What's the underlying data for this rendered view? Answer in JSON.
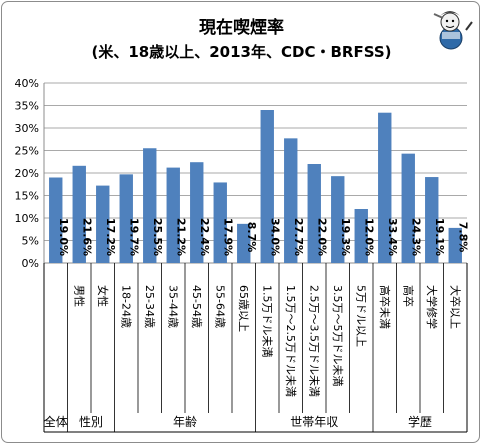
{
  "chart_data": {
    "type": "bar",
    "title": "現在喫煙率",
    "subtitle": "(米、18歳以上、2013年、CDC・BRFSS)",
    "ylim": [
      0,
      40
    ],
    "y_ticks": [
      "0%",
      "5%",
      "10%",
      "15%",
      "20%",
      "25%",
      "30%",
      "35%",
      "40%"
    ],
    "grid": true,
    "bar_color": "#4f81bd",
    "groups": [
      {
        "name": "全体",
        "categories": [
          ""
        ],
        "values": [
          19.0
        ],
        "labels": [
          "19.0%"
        ]
      },
      {
        "name": "性別",
        "categories": [
          "男性",
          "女性"
        ],
        "values": [
          21.6,
          17.2
        ],
        "labels": [
          "21.6%",
          "17.2%"
        ]
      },
      {
        "name": "年齢",
        "categories": [
          "18-24歳",
          "25-34歳",
          "35-44歳",
          "45-54歳",
          "55-64歳",
          "65歳以上"
        ],
        "values": [
          19.7,
          25.5,
          21.2,
          22.4,
          17.9,
          8.7
        ],
        "labels": [
          "19.7%",
          "25.5%",
          "21.2%",
          "22.4%",
          "17.9%",
          "8.7%"
        ]
      },
      {
        "name": "世帯年収",
        "categories": [
          "1.5万ドル未満",
          "1.5万～2.5万ドル未満",
          "2.5万～3.5万ドル未満",
          "3.5万～5万ドル未満",
          "5万ドル以上"
        ],
        "values": [
          34.0,
          27.7,
          22.0,
          19.3,
          12.0
        ],
        "labels": [
          "34.0%",
          "27.7%",
          "22.0%",
          "19.3%",
          "12.0%"
        ]
      },
      {
        "name": "学歴",
        "categories": [
          "高卒未満",
          "高卒",
          "大学修学",
          "大卒以上"
        ],
        "values": [
          33.4,
          24.3,
          19.1,
          7.8
        ],
        "labels": [
          "33.4%",
          "24.3%",
          "19.1%",
          "7.8%"
        ]
      }
    ]
  }
}
